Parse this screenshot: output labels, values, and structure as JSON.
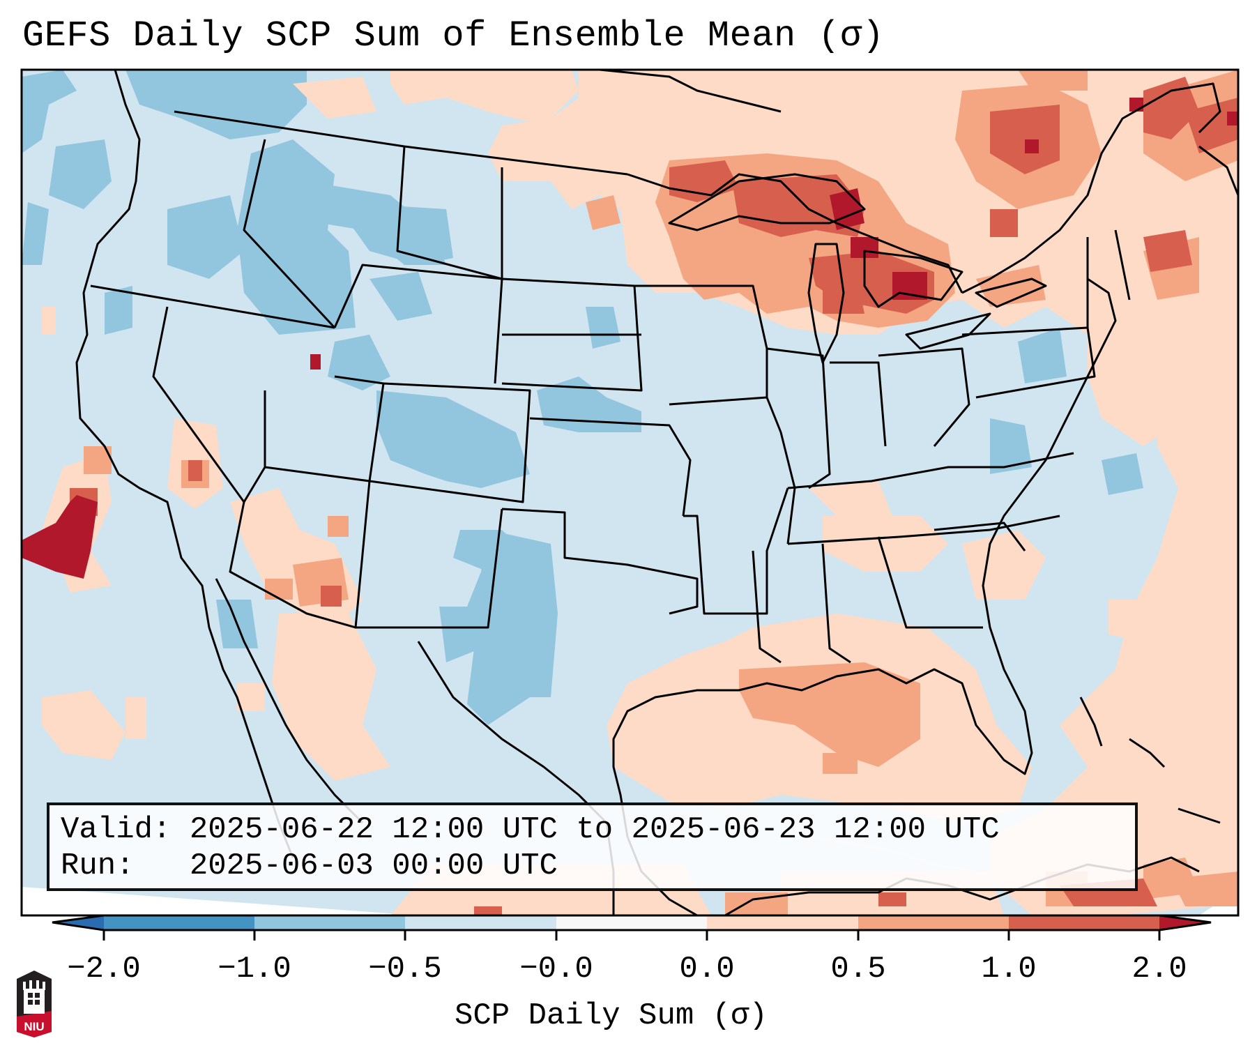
{
  "title": "GEFS Daily SCP Sum of Ensemble Mean (σ)",
  "legend": {
    "valid_label": "Valid:",
    "valid_value": "2025-06-22 12:00 UTC to 2025-06-23 12:00 UTC",
    "run_label": "Run:",
    "run_value": "2025-06-03 00:00 UTC"
  },
  "colorbar": {
    "label": "SCP Daily Sum (σ)",
    "ticks": [
      "−2.0",
      "−1.0",
      "−0.5",
      "−0.0",
      "0.0",
      "0.5",
      "1.0",
      "2.0"
    ],
    "bins": [
      {
        "from": "<-2.0",
        "color": "#2b6cb0"
      },
      {
        "from": "-2.0",
        "to": "-1.0",
        "color": "#4393c3"
      },
      {
        "from": "-1.0",
        "to": "-0.5",
        "color": "#92c5de"
      },
      {
        "from": "-0.5",
        "to": "-0.0",
        "color": "#d1e5f0"
      },
      {
        "from": "-0.0",
        "to": "0.0",
        "color": "#f7f7f7"
      },
      {
        "from": "0.0",
        "to": "0.5",
        "color": "#fddbc7"
      },
      {
        "from": "0.5",
        "to": "1.0",
        "color": "#f4a582"
      },
      {
        "from": "1.0",
        "to": "2.0",
        "color": "#d6604d"
      },
      {
        "from": ">2.0",
        "color": "#b2182b"
      }
    ]
  },
  "logo": {
    "text": "NIU",
    "colors": {
      "dark": "#231f20",
      "red": "#c8102e"
    }
  }
}
